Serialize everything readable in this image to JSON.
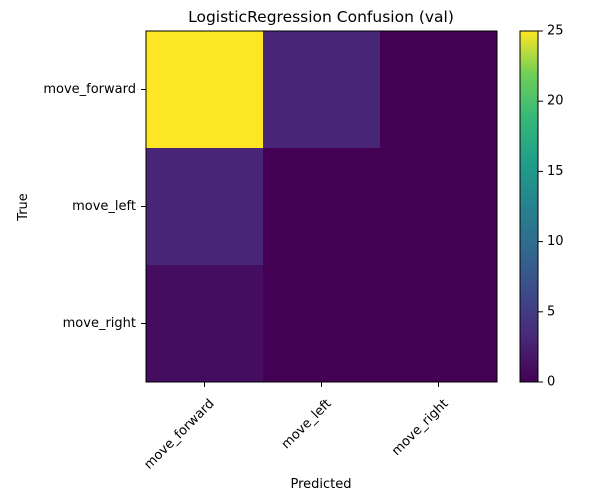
{
  "chart_data": {
    "type": "heatmap",
    "title": "LogisticRegression Confusion (val)",
    "xlabel": "Predicted",
    "ylabel": "True",
    "x_categories": [
      "move_forward",
      "move_left",
      "move_right"
    ],
    "y_categories": [
      "move_forward",
      "move_left",
      "move_right"
    ],
    "values": [
      [
        25,
        3,
        0
      ],
      [
        3,
        0,
        0
      ],
      [
        1,
        0,
        0
      ]
    ],
    "colormap": "viridis",
    "color_range": [
      0,
      25
    ],
    "colorbar_ticks": [
      0,
      5,
      10,
      15,
      20,
      25
    ],
    "grid": false
  }
}
